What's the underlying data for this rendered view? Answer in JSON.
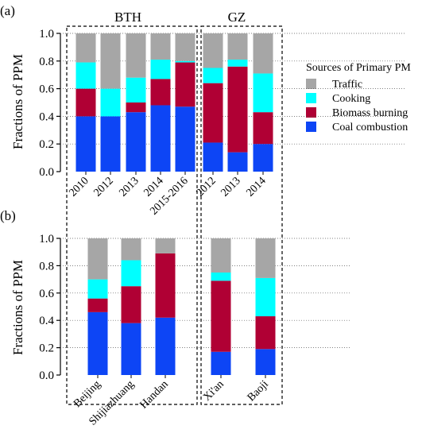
{
  "colors": {
    "traffic": "#a6a6a6",
    "cooking": "#00ffff",
    "biomass": "#b00034",
    "coal": "#0d45f5"
  },
  "legend": {
    "title": "Sources of Primary PM",
    "items": [
      {
        "label": "Traffic",
        "color_key": "traffic"
      },
      {
        "label": "Cooking",
        "color_key": "cooking"
      },
      {
        "label": "Biomass burning",
        "color_key": "biomass"
      },
      {
        "label": "Coal combustion",
        "color_key": "coal"
      }
    ]
  },
  "chart_data": [
    {
      "type": "bar",
      "stacked": true,
      "panel_label": "(a)",
      "ylabel": "Fractions of PPM",
      "ylim": [
        0,
        1.0
      ],
      "yticks": [
        "0.0",
        "0.2",
        "0.4",
        "0.6",
        "0.8",
        "1.0"
      ],
      "legend_position": "right",
      "groups": [
        {
          "title": "BTH",
          "categories": [
            "2010",
            "2012",
            "2013",
            "2014",
            "2015-2016"
          ]
        },
        {
          "title": "GZ",
          "categories": [
            "2012",
            "2013",
            "2014"
          ]
        }
      ],
      "categories": [
        "2010",
        "2012",
        "2013",
        "2014",
        "2015-2016",
        "2012",
        "2013",
        "2014"
      ],
      "series": [
        {
          "name": "Coal combustion",
          "color_key": "coal",
          "values": [
            0.4,
            0.4,
            0.43,
            0.48,
            0.47,
            0.21,
            0.14,
            0.2
          ]
        },
        {
          "name": "Biomass burning",
          "color_key": "biomass",
          "values": [
            0.2,
            0.0,
            0.07,
            0.19,
            0.32,
            0.43,
            0.62,
            0.23
          ]
        },
        {
          "name": "Cooking",
          "color_key": "cooking",
          "values": [
            0.19,
            0.2,
            0.18,
            0.14,
            0.01,
            0.11,
            0.05,
            0.28
          ]
        },
        {
          "name": "Traffic",
          "color_key": "traffic",
          "values": [
            0.21,
            0.4,
            0.32,
            0.19,
            0.2,
            0.25,
            0.19,
            0.29
          ]
        }
      ]
    },
    {
      "type": "bar",
      "stacked": true,
      "panel_label": "(b)",
      "ylabel": "Fractions of PPM",
      "ylim": [
        0,
        1.0
      ],
      "yticks": [
        "0.0",
        "0.2",
        "0.4",
        "0.6",
        "0.8",
        "1.0"
      ],
      "groups": [
        {
          "title": "",
          "categories": [
            "Beijing",
            "Shijiazhuang",
            "Handan"
          ]
        },
        {
          "title": "",
          "categories": [
            "Xi'an",
            "Baoji"
          ]
        }
      ],
      "categories": [
        "Beijing",
        "Shijiazhuang",
        "Handan",
        "Xi'an",
        "Baoji"
      ],
      "series": [
        {
          "name": "Coal combustion",
          "color_key": "coal",
          "values": [
            0.46,
            0.38,
            0.42,
            0.17,
            0.19
          ]
        },
        {
          "name": "Biomass burning",
          "color_key": "biomass",
          "values": [
            0.1,
            0.27,
            0.47,
            0.52,
            0.24
          ]
        },
        {
          "name": "Cooking",
          "color_key": "cooking",
          "values": [
            0.14,
            0.19,
            0.0,
            0.06,
            0.28
          ]
        },
        {
          "name": "Traffic",
          "color_key": "traffic",
          "values": [
            0.3,
            0.16,
            0.11,
            0.25,
            0.29
          ]
        }
      ]
    }
  ]
}
